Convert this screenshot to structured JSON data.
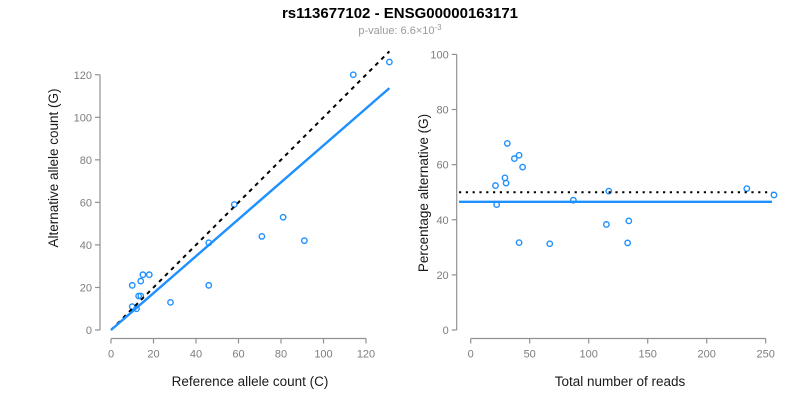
{
  "title": "rs113677102 - ENSG00000163171",
  "subtitle": {
    "text": "p-value: 6.6×10",
    "exponent": "-3"
  },
  "style": {
    "accent_color": "#1E90FF",
    "reference_line_color": "#000000",
    "axis_color": "#919191",
    "tick_label_color": "#7d7d7d",
    "title_color": "#000000",
    "subtitle_color": "#9a9a9a"
  },
  "chart_data": [
    {
      "type": "scatter",
      "panel": "left",
      "title": "",
      "xlabel": "Reference allele count (C)",
      "ylabel": "Alternative allele count (G)",
      "xlim": [
        0,
        131
      ],
      "ylim": [
        0,
        131
      ],
      "xticks": [
        0,
        20,
        40,
        60,
        80,
        100,
        120
      ],
      "yticks": [
        0,
        20,
        40,
        60,
        80,
        100,
        120
      ],
      "grid": false,
      "points": [
        [
          10,
          11
        ],
        [
          12,
          10
        ],
        [
          13,
          16
        ],
        [
          14,
          16
        ],
        [
          10,
          21
        ],
        [
          14,
          23
        ],
        [
          15,
          26
        ],
        [
          18,
          26
        ],
        [
          28,
          13
        ],
        [
          46,
          21
        ],
        [
          46,
          41
        ],
        [
          58,
          59
        ],
        [
          71,
          44
        ],
        [
          81,
          53
        ],
        [
          91,
          42
        ],
        [
          114,
          120
        ],
        [
          131,
          126
        ]
      ],
      "lines": [
        {
          "name": "identity-line",
          "style": "dashed",
          "color": "#000000",
          "x1": 0,
          "y1": 0,
          "x2": 131,
          "y2": 131
        },
        {
          "name": "fit-line",
          "style": "solid",
          "color": "#1E90FF",
          "x1": 0,
          "y1": 0,
          "x2": 131,
          "y2": 113.7
        }
      ]
    },
    {
      "type": "scatter",
      "panel": "right",
      "title": "",
      "xlabel": "Total number of reads",
      "ylabel": "Percentage alternative (G)",
      "xlim": [
        0,
        260
      ],
      "ylim": [
        0,
        100
      ],
      "xticks": [
        0,
        50,
        100,
        150,
        200,
        250
      ],
      "yticks": [
        0,
        20,
        40,
        60,
        80,
        100
      ],
      "grid": false,
      "points": [
        [
          21,
          52.4
        ],
        [
          22,
          45.5
        ],
        [
          29,
          55.2
        ],
        [
          30,
          53.3
        ],
        [
          31,
          67.7
        ],
        [
          37,
          62.2
        ],
        [
          41,
          63.4
        ],
        [
          44,
          59.1
        ],
        [
          41,
          31.7
        ],
        [
          67,
          31.3
        ],
        [
          87,
          47.1
        ],
        [
          117,
          50.4
        ],
        [
          115,
          38.3
        ],
        [
          134,
          39.6
        ],
        [
          133,
          31.6
        ],
        [
          234,
          51.3
        ],
        [
          257,
          49.0
        ]
      ],
      "lines": [
        {
          "name": "expected-percentage-line",
          "style": "dotted",
          "color": "#000000",
          "y": 50
        },
        {
          "name": "observed-percentage-line",
          "style": "solid",
          "color": "#1E90FF",
          "y": 46.5
        }
      ]
    }
  ]
}
